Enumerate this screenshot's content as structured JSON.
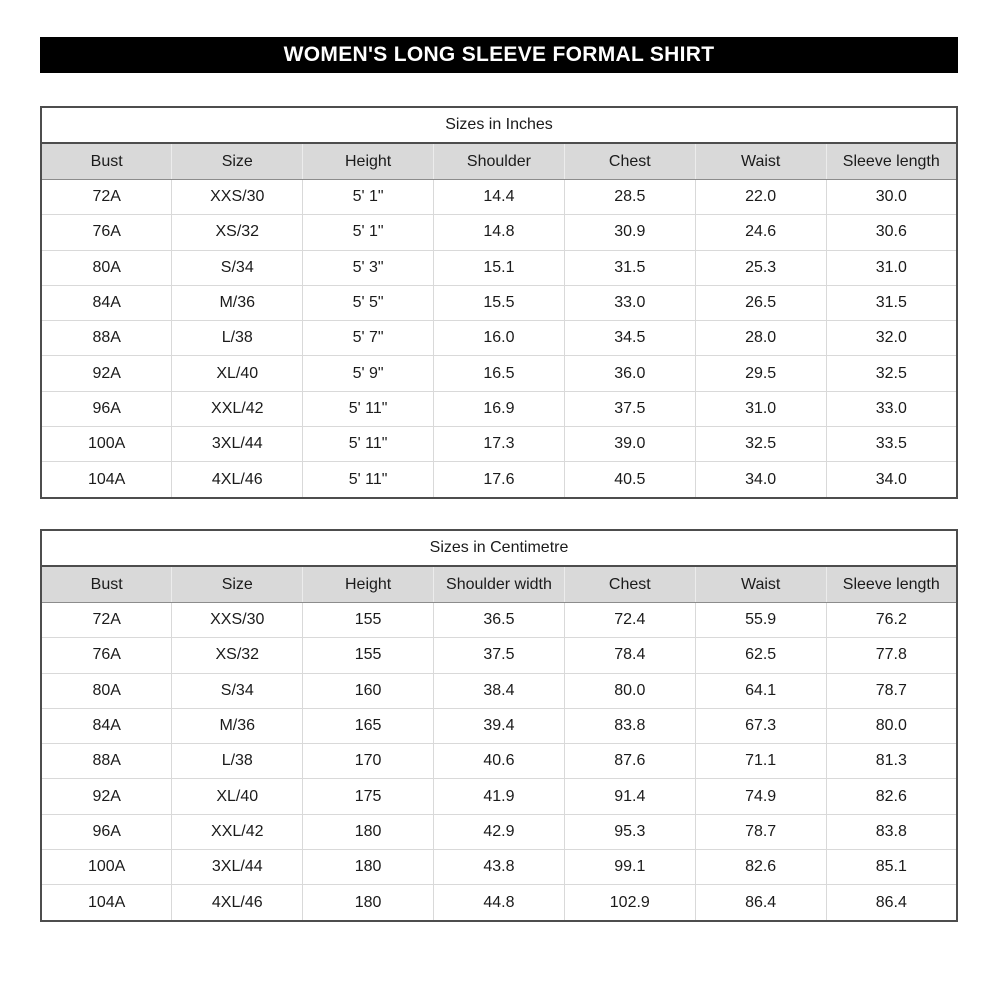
{
  "banner": {
    "title": "WOMEN'S LONG SLEEVE FORMAL SHIRT"
  },
  "tables": [
    {
      "title": "Sizes in Inches",
      "columns": [
        "Bust",
        "Size",
        "Height",
        "Shoulder",
        "Chest",
        "Waist",
        "Sleeve length"
      ],
      "rows": [
        [
          "72A",
          "XXS/30",
          "5' 1\"",
          "14.4",
          "28.5",
          "22.0",
          "30.0"
        ],
        [
          "76A",
          "XS/32",
          "5' 1\"",
          "14.8",
          "30.9",
          "24.6",
          "30.6"
        ],
        [
          "80A",
          "S/34",
          "5' 3\"",
          "15.1",
          "31.5",
          "25.3",
          "31.0"
        ],
        [
          "84A",
          "M/36",
          "5' 5\"",
          "15.5",
          "33.0",
          "26.5",
          "31.5"
        ],
        [
          "88A",
          "L/38",
          "5' 7\"",
          "16.0",
          "34.5",
          "28.0",
          "32.0"
        ],
        [
          "92A",
          "XL/40",
          "5' 9\"",
          "16.5",
          "36.0",
          "29.5",
          "32.5"
        ],
        [
          "96A",
          "XXL/42",
          "5' 11\"",
          "16.9",
          "37.5",
          "31.0",
          "33.0"
        ],
        [
          "100A",
          "3XL/44",
          "5' 11\"",
          "17.3",
          "39.0",
          "32.5",
          "33.5"
        ],
        [
          "104A",
          "4XL/46",
          "5' 11\"",
          "17.6",
          "40.5",
          "34.0",
          "34.0"
        ]
      ]
    },
    {
      "title": "Sizes in Centimetre",
      "columns": [
        "Bust",
        "Size",
        "Height",
        "Shoulder width",
        "Chest",
        "Waist",
        "Sleeve length"
      ],
      "rows": [
        [
          "72A",
          "XXS/30",
          "155",
          "36.5",
          "72.4",
          "55.9",
          "76.2"
        ],
        [
          "76A",
          "XS/32",
          "155",
          "37.5",
          "78.4",
          "62.5",
          "77.8"
        ],
        [
          "80A",
          "S/34",
          "160",
          "38.4",
          "80.0",
          "64.1",
          "78.7"
        ],
        [
          "84A",
          "M/36",
          "165",
          "39.4",
          "83.8",
          "67.3",
          "80.0"
        ],
        [
          "88A",
          "L/38",
          "170",
          "40.6",
          "87.6",
          "71.1",
          "81.3"
        ],
        [
          "92A",
          "XL/40",
          "175",
          "41.9",
          "91.4",
          "74.9",
          "82.6"
        ],
        [
          "96A",
          "XXL/42",
          "180",
          "42.9",
          "95.3",
          "78.7",
          "83.8"
        ],
        [
          "100A",
          "3XL/44",
          "180",
          "43.8",
          "99.1",
          "82.6",
          "85.1"
        ],
        [
          "104A",
          "4XL/46",
          "180",
          "44.8",
          "102.9",
          "86.4",
          "86.4"
        ]
      ]
    }
  ],
  "colors": {
    "banner_bg": "#000000",
    "banner_text": "#ffffff",
    "header_fill": "#d9d9d9",
    "outer_border": "#4d4d4d",
    "grid_line": "#d9d9d9"
  }
}
